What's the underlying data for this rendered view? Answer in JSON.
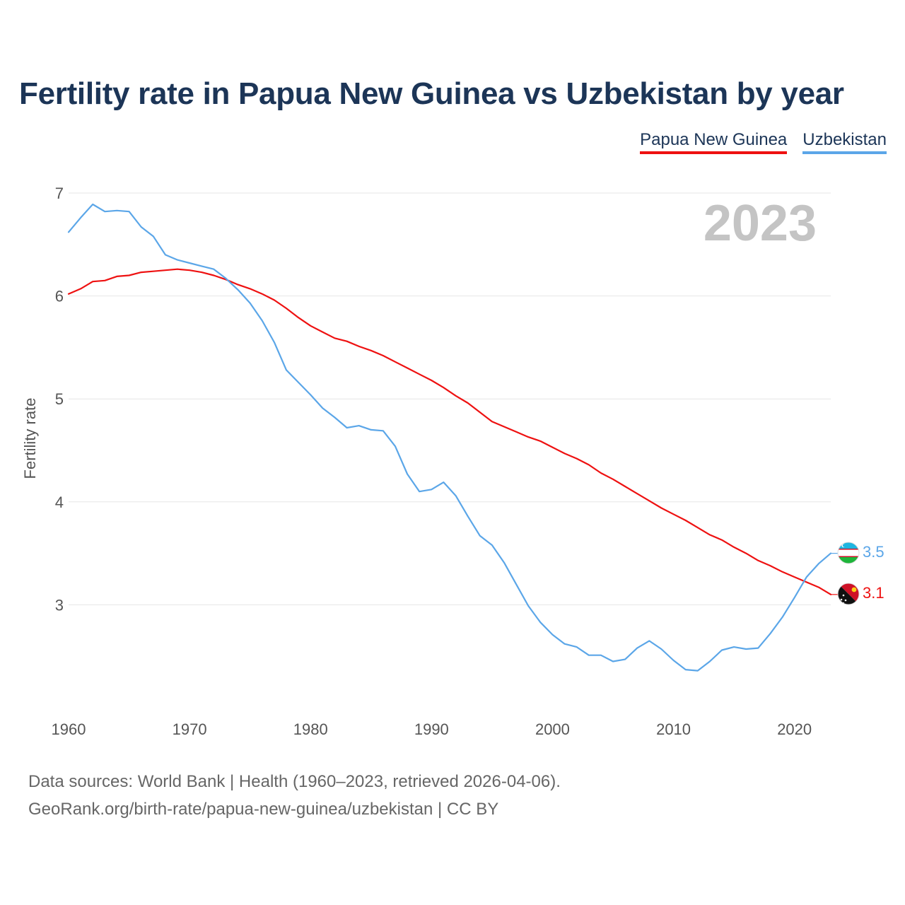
{
  "title": "Fertility rate in Papua New Guinea vs Uzbekistan by year",
  "legend": {
    "png": "Papua New Guinea",
    "uzb": "Uzbekistan"
  },
  "year_overlay": "2023",
  "footer": {
    "line1": "Data sources: World Bank | Health (1960–2023, retrieved 2026-04-06).",
    "line2": "GeoRank.org/birth-rate/papua-new-guinea/uzbekistan | CC BY"
  },
  "colors": {
    "png": "#ee1111",
    "uzb": "#5ba6e8",
    "title": "#1c3557",
    "grid": "#e6e6e6",
    "tick": "#555555"
  },
  "chart_data": {
    "type": "line",
    "title": "Fertility rate in Papua New Guinea vs Uzbekistan by year",
    "xlabel": "",
    "ylabel": "Fertility rate",
    "xlim": [
      1960,
      2023
    ],
    "ylim": [
      2,
      7
    ],
    "yticks": [
      3,
      4,
      5,
      6,
      7
    ],
    "xticks": [
      1960,
      1970,
      1980,
      1990,
      2000,
      2010,
      2020
    ],
    "grid": true,
    "legend_position": "top-right",
    "x": [
      1960,
      1961,
      1962,
      1963,
      1964,
      1965,
      1966,
      1967,
      1968,
      1969,
      1970,
      1971,
      1972,
      1973,
      1974,
      1975,
      1976,
      1977,
      1978,
      1979,
      1980,
      1981,
      1982,
      1983,
      1984,
      1985,
      1986,
      1987,
      1988,
      1989,
      1990,
      1991,
      1992,
      1993,
      1994,
      1995,
      1996,
      1997,
      1998,
      1999,
      2000,
      2001,
      2002,
      2003,
      2004,
      2005,
      2006,
      2007,
      2008,
      2009,
      2010,
      2011,
      2012,
      2013,
      2014,
      2015,
      2016,
      2017,
      2018,
      2019,
      2020,
      2021,
      2022,
      2023
    ],
    "series": [
      {
        "name": "Papua New Guinea",
        "key": "png",
        "end_label": "3.1",
        "values": [
          6.02,
          6.07,
          6.14,
          6.15,
          6.19,
          6.2,
          6.23,
          6.24,
          6.25,
          6.26,
          6.25,
          6.23,
          6.2,
          6.16,
          6.11,
          6.07,
          6.02,
          5.96,
          5.88,
          5.79,
          5.71,
          5.65,
          5.59,
          5.56,
          5.51,
          5.47,
          5.42,
          5.36,
          5.3,
          5.24,
          5.18,
          5.11,
          5.03,
          4.96,
          4.87,
          4.78,
          4.73,
          4.68,
          4.63,
          4.59,
          4.53,
          4.47,
          4.42,
          4.36,
          4.28,
          4.22,
          4.15,
          4.08,
          4.01,
          3.94,
          3.88,
          3.82,
          3.75,
          3.68,
          3.63,
          3.56,
          3.5,
          3.43,
          3.38,
          3.32,
          3.27,
          3.22,
          3.17,
          3.1
        ]
      },
      {
        "name": "Uzbekistan",
        "key": "uzb",
        "end_label": "3.5",
        "values": [
          6.62,
          6.76,
          6.89,
          6.82,
          6.83,
          6.82,
          6.67,
          6.58,
          6.4,
          6.35,
          6.32,
          6.29,
          6.26,
          6.17,
          6.06,
          5.93,
          5.76,
          5.55,
          5.28,
          5.16,
          5.04,
          4.91,
          4.82,
          4.72,
          4.74,
          4.7,
          4.69,
          4.54,
          4.27,
          4.1,
          4.12,
          4.19,
          4.06,
          3.86,
          3.67,
          3.58,
          3.41,
          3.2,
          2.99,
          2.83,
          2.71,
          2.62,
          2.59,
          2.51,
          2.51,
          2.45,
          2.47,
          2.58,
          2.65,
          2.57,
          2.46,
          2.37,
          2.36,
          2.45,
          2.56,
          2.59,
          2.57,
          2.58,
          2.72,
          2.88,
          3.07,
          3.27,
          3.4,
          3.5
        ]
      }
    ]
  }
}
